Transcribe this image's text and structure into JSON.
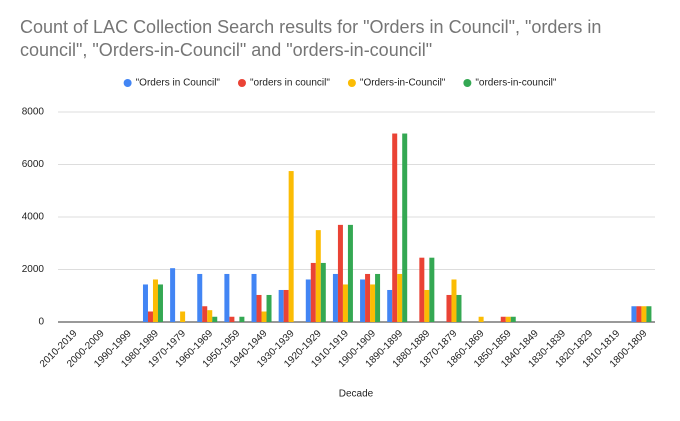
{
  "chart_data": {
    "type": "bar",
    "title": "Count of LAC Collection Search results for \"Orders in Council\", \"orders in council\", \"Orders-in-Council\" and \"orders-in-council\"",
    "x_label": "Decade",
    "categories": [
      "2010-2019",
      "2000-2009",
      "1990-1999",
      "1980-1989",
      "1970-1979",
      "1960-1969",
      "1950-1959",
      "1940-1949",
      "1930-1939",
      "1920-1929",
      "1910-1919",
      "1900-1909",
      "1890-1899",
      "1880-1889",
      "1870-1879",
      "1860-1869",
      "1850-1859",
      "1840-1849",
      "1830-1839",
      "1820-1829",
      "1810-1819",
      "1800-1809"
    ],
    "series": [
      {
        "name": "\"Orders in Council\"",
        "color": "#4285f4",
        "values": [
          0,
          0,
          0,
          1430,
          2050,
          1830,
          1830,
          1830,
          1220,
          1620,
          1830,
          1620,
          1220,
          0,
          0,
          0,
          0,
          0,
          0,
          0,
          0,
          600
        ]
      },
      {
        "name": "\"orders in council\"",
        "color": "#ea4335",
        "values": [
          0,
          0,
          0,
          400,
          0,
          600,
          200,
          1030,
          1220,
          2250,
          3700,
          1830,
          7180,
          2450,
          1030,
          0,
          200,
          0,
          0,
          0,
          0,
          600
        ]
      },
      {
        "name": "\"Orders-in-Council\"",
        "color": "#fbbc04",
        "values": [
          0,
          0,
          0,
          1620,
          400,
          450,
          0,
          400,
          5750,
          3500,
          1430,
          1430,
          1830,
          1220,
          1620,
          200,
          200,
          0,
          0,
          0,
          0,
          600
        ]
      },
      {
        "name": "\"orders-in-council\"",
        "color": "#34a853",
        "values": [
          0,
          0,
          0,
          1430,
          0,
          200,
          200,
          1030,
          0,
          2250,
          3700,
          1830,
          7180,
          2450,
          1030,
          0,
          200,
          0,
          0,
          0,
          0,
          600
        ]
      }
    ],
    "ylim": [
      0,
      8000
    ],
    "yticks": [
      0,
      2000,
      4000,
      6000,
      8000
    ],
    "grid": true,
    "legend": "top"
  }
}
